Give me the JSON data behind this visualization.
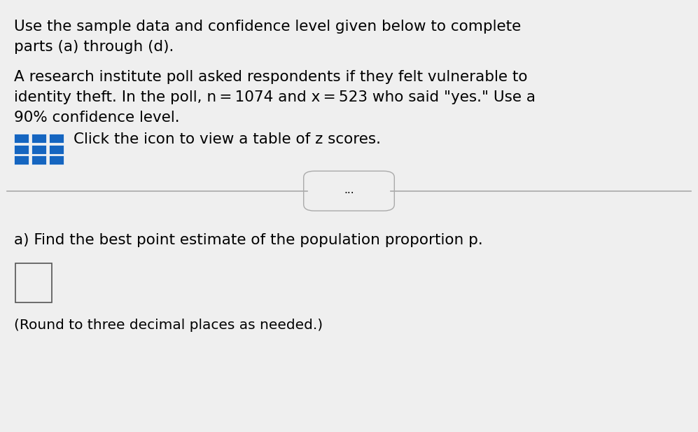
{
  "background_color": "#efefef",
  "text_color": "#000000",
  "line1": "Use the sample data and confidence level given below to complete",
  "line2": "parts (a) through (d).",
  "para2_line1": "A research institute poll asked respondents if they felt vulnerable to",
  "para2_line2": "identity theft. In the poll, n = 1074 and x = 523 who said \"yes.\" Use a",
  "para2_line3": "90% confidence level.",
  "click_text": "Click the icon to view a table of z scores.",
  "divider_dots": "...",
  "part_a_line": "a) Find the best point estimate of the population proportion p.",
  "round_note": "(Round to three decimal places as needed.)",
  "font_size_main": 15.5,
  "font_size_small": 14.5,
  "icon_color_main": "#1565c0",
  "line_color": "#aaaaaa"
}
